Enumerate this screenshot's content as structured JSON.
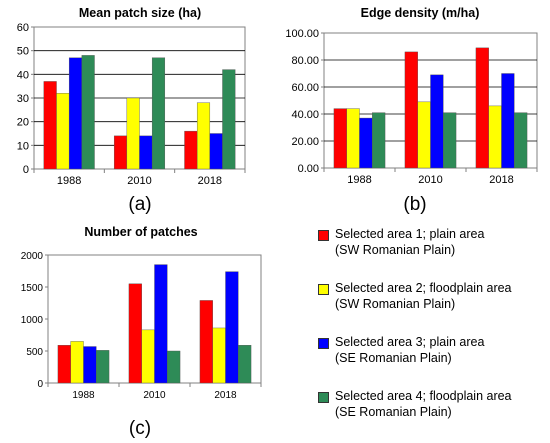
{
  "colors": {
    "area1": "#ff0000",
    "area2": "#ffff00",
    "area3": "#0000ff",
    "area4": "#2e8b57"
  },
  "legend": [
    {
      "line1": "Selected area 1; plain area",
      "line2": "(SW Romanian Plain)",
      "color": "#ff0000"
    },
    {
      "line1": "Selected area 2; floodplain area",
      "line2": "(SW Romanian Plain)",
      "color": "#ffff00"
    },
    {
      "line1": "Selected area 3; plain area",
      "line2": "(SE Romanian Plain)",
      "color": "#0000ff"
    },
    {
      "line1": "Selected area 4; floodplain area",
      "line2": "(SE Romanian Plain)",
      "color": "#2e8b57"
    }
  ],
  "chart_data": [
    {
      "type": "bar",
      "panel_label": "(a)",
      "title": "Mean patch size (ha)",
      "categories": [
        "1988",
        "2010",
        "2018"
      ],
      "ylim": [
        0,
        60
      ],
      "yticks": [
        "0",
        "10",
        "20",
        "30",
        "40",
        "50",
        "60"
      ],
      "grid": true,
      "series": [
        {
          "name": "Selected area 1; plain area (SW Romanian Plain)",
          "values": [
            37,
            14,
            16
          ]
        },
        {
          "name": "Selected area 2; floodplain area (SW Romanian Plain)",
          "values": [
            32,
            30,
            28
          ]
        },
        {
          "name": "Selected area 3; plain area (SE Romanian Plain)",
          "values": [
            47,
            14,
            15
          ]
        },
        {
          "name": "Selected area 4; floodplain area (SE Romanian Plain)",
          "values": [
            48,
            47,
            42
          ]
        }
      ]
    },
    {
      "type": "bar",
      "panel_label": "(b)",
      "title": "Edge density (m/ha)",
      "categories": [
        "1988",
        "2010",
        "2018"
      ],
      "ylim": [
        0,
        100
      ],
      "yticks": [
        "0.00",
        "20.00",
        "40.00",
        "60.00",
        "80.00",
        "100.00"
      ],
      "grid": true,
      "series": [
        {
          "name": "Selected area 1; plain area (SW Romanian Plain)",
          "values": [
            44,
            86,
            89
          ]
        },
        {
          "name": "Selected area 2; floodplain area (SW Romanian Plain)",
          "values": [
            44,
            49,
            46
          ]
        },
        {
          "name": "Selected area 3; plain area (SE Romanian Plain)",
          "values": [
            37,
            69,
            70
          ]
        },
        {
          "name": "Selected area 4; floodplain area (SE Romanian Plain)",
          "values": [
            41,
            41,
            41
          ]
        }
      ]
    },
    {
      "type": "bar",
      "panel_label": "(c)",
      "title": "Number of patches",
      "categories": [
        "1988",
        "2010",
        "2018"
      ],
      "ylim": [
        0,
        2000
      ],
      "yticks": [
        "0",
        "500",
        "1000",
        "1500",
        "2000"
      ],
      "grid": false,
      "series": [
        {
          "name": "Selected area 1; plain area (SW Romanian Plain)",
          "values": [
            590,
            1550,
            1290
          ]
        },
        {
          "name": "Selected area 2; floodplain area (SW Romanian Plain)",
          "values": [
            650,
            830,
            860
          ]
        },
        {
          "name": "Selected area 3; plain area (SE Romanian Plain)",
          "values": [
            570,
            1850,
            1740
          ]
        },
        {
          "name": "Selected area 4; floodplain area (SE Romanian Plain)",
          "values": [
            510,
            500,
            590
          ]
        }
      ]
    }
  ]
}
